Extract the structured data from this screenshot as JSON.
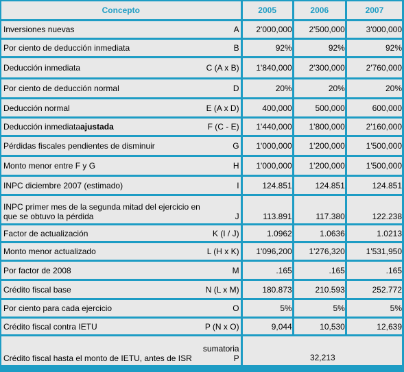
{
  "header": {
    "concept": "Concepto",
    "years": [
      "2005",
      "2006",
      "2007"
    ]
  },
  "rows": [
    {
      "label": "Inversiones nuevas",
      "code": "A",
      "values": [
        "2'000,000",
        "2'500,000",
        "3'000,000"
      ]
    },
    {
      "label": "Por ciento de deducción inmediata",
      "code": "B",
      "values": [
        "92%",
        "92%",
        "92%"
      ]
    },
    {
      "label": "Deducción inmediata",
      "code": "C (A x B)",
      "values": [
        "1'840,000",
        "2'300,000",
        "2'760,000"
      ]
    },
    {
      "label": "Por ciento de deducción normal",
      "code": "D",
      "values": [
        "20%",
        "20%",
        "20%"
      ]
    },
    {
      "label": "Deducción normal",
      "code": "E (A x D)",
      "values": [
        "400,000",
        "500,000",
        "600,000"
      ]
    },
    {
      "label": "Deducción inmediata",
      "label_bold": "ajustada",
      "code": "F (C - E)",
      "values": [
        "1'440,000",
        "1'800,000",
        "2'160,000"
      ]
    },
    {
      "label": "Pérdidas fiscales pendientes de disminuir",
      "code": "G",
      "values": [
        "1'000,000",
        "1'200,000",
        "1'500,000"
      ]
    },
    {
      "label": "Monto menor entre F y G",
      "code": "H",
      "values": [
        "1'000,000",
        "1'200,000",
        "1'500,000"
      ]
    },
    {
      "label": "INPC diciembre 2007 (estimado)",
      "code": "I",
      "values": [
        "124.851",
        "124.851",
        "124.851"
      ]
    },
    {
      "label": "INPC primer mes de la segunda mitad del ejercicio en que se obtuvo la pérdida",
      "code": "J",
      "values": [
        "113.891",
        "117.380",
        "122.238"
      ]
    },
    {
      "label": "Factor de actualización",
      "code": "K (I / J)",
      "values": [
        "1.0962",
        "1.0636",
        "1.0213"
      ]
    },
    {
      "label": "Monto menor actualizado",
      "code": "L (H x K)",
      "values": [
        "1'096,200",
        "1'276,320",
        "1'531,950"
      ]
    },
    {
      "label": "Por factor de 2008",
      "code": "M",
      "values": [
        ".165",
        ".165",
        ".165"
      ]
    },
    {
      "label": "Crédito fiscal base",
      "code": "N (L x M)",
      "values": [
        "180.873",
        "210.593",
        "252.772"
      ]
    },
    {
      "label": "Por ciento para cada ejercicio",
      "code": "O",
      "values": [
        "5%",
        "5%",
        "5%"
      ]
    },
    {
      "label": "Crédito fiscal contra IETU",
      "code": "P (N x O)",
      "values": [
        "9,044",
        "10,530",
        "12,639"
      ]
    },
    {
      "label": "Crédito fiscal hasta el monto de IETU, antes de ISR",
      "code_note": "sumatoria",
      "code": "P",
      "total": "32,213"
    }
  ]
}
